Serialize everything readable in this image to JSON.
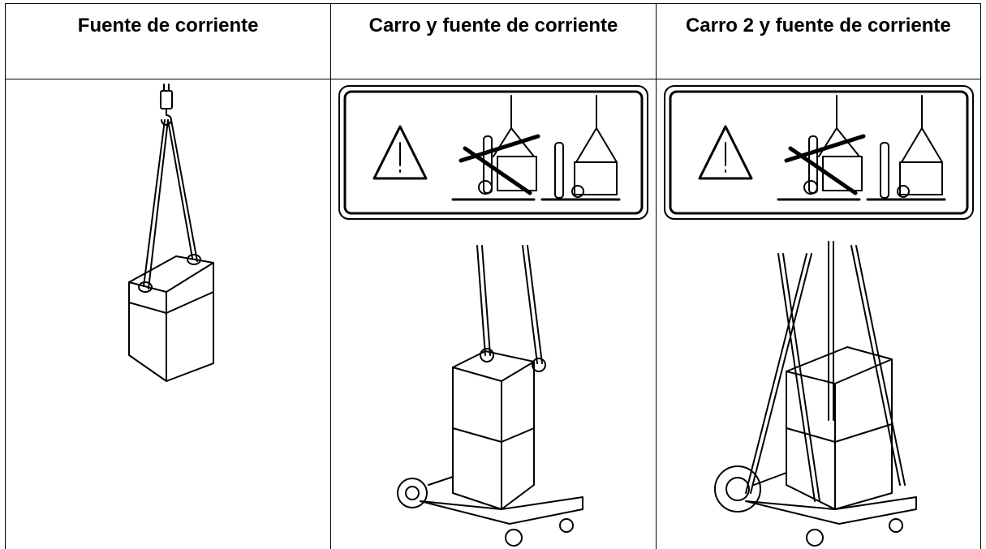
{
  "header": {
    "columns": [
      "Fuente de corriente",
      "Carro y fuente de corriente",
      "Carro 2 y fuente de corriente"
    ]
  }
}
